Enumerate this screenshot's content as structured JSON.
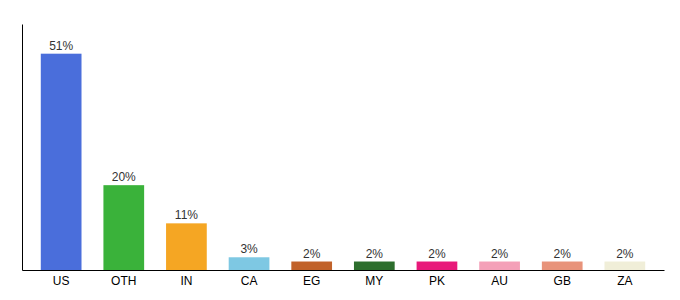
{
  "chart_data": {
    "type": "bar",
    "categories": [
      "US",
      "OTH",
      "IN",
      "CA",
      "EG",
      "MY",
      "PK",
      "AU",
      "GB",
      "ZA"
    ],
    "values": [
      51,
      20,
      11,
      3,
      2,
      2,
      2,
      2,
      2,
      2
    ],
    "value_labels": [
      "51%",
      "20%",
      "11%",
      "3%",
      "2%",
      "2%",
      "2%",
      "2%",
      "2%",
      "2%"
    ],
    "colors": [
      "#4a6edb",
      "#3ab23a",
      "#f5a623",
      "#7ec8e3",
      "#c1622a",
      "#2d6e2d",
      "#e8197a",
      "#f4a0b8",
      "#e8937a",
      "#f0eed8"
    ],
    "ylim": [
      0,
      58
    ],
    "data_labels": true,
    "tick_labels": "x",
    "grid": false
  }
}
